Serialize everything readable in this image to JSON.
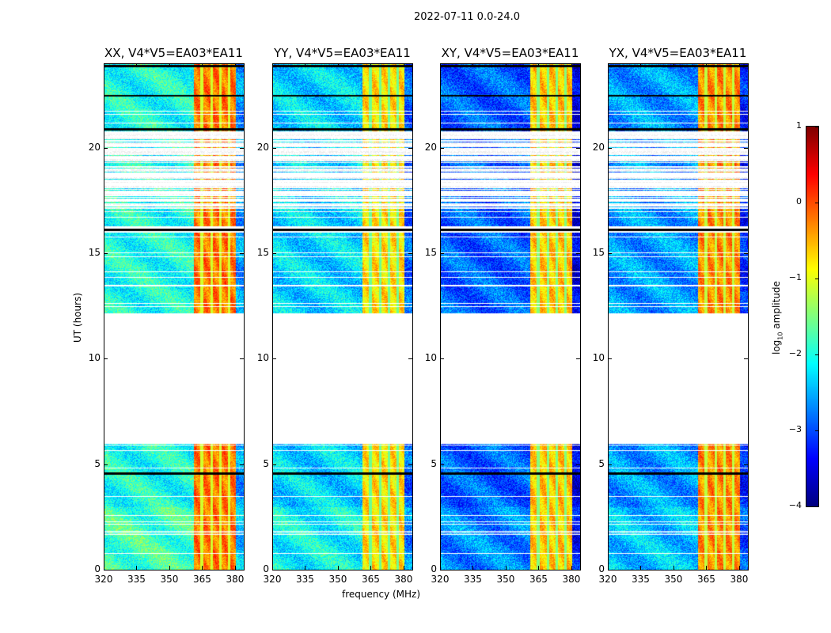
{
  "chart_data": {
    "type": "heatmap",
    "title": "2022-07-11 0.0-24.0",
    "xlabel": "frequency (MHz)",
    "ylabel": "UT (hours)",
    "xlim": [
      320,
      384
    ],
    "ylim": [
      0,
      24
    ],
    "xticks": [
      320,
      335,
      350,
      365,
      380
    ],
    "yticks": [
      0,
      5,
      10,
      15,
      20
    ],
    "panels": [
      {
        "title": "XX, V4*V5=EA03*EA11",
        "base_log_amp": -2.0,
        "band_log_amp": -0.2
      },
      {
        "title": "YY, V4*V5=EA03*EA11",
        "base_log_amp": -2.3,
        "band_log_amp": -0.7
      },
      {
        "title": "XY, V4*V5=EA03*EA11",
        "base_log_amp": -2.9,
        "band_log_amp": -0.6
      },
      {
        "title": "YX, V4*V5=EA03*EA11",
        "base_log_amp": -2.6,
        "band_log_amp": -0.3
      }
    ],
    "data_time_ranges_hours": [
      [
        0,
        6.0
      ],
      [
        12.2,
        16.0
      ],
      [
        16.3,
        24
      ]
    ],
    "sparse_time_range_hours": [
      17.0,
      20.8
    ],
    "strong_band_mhz": [
      361,
      380
    ],
    "band_gaps_mhz": [
      364.5,
      369,
      373,
      377
    ],
    "black_lines_hours": [
      4.6,
      16.15,
      20.9,
      22.5,
      23.9
    ],
    "colorbar": {
      "label": "log₁₀ amplitude",
      "range": [
        -4,
        1
      ],
      "ticks": [
        "1",
        "0",
        "−1",
        "−2",
        "−3",
        "−4"
      ],
      "colormap": "jet"
    }
  }
}
